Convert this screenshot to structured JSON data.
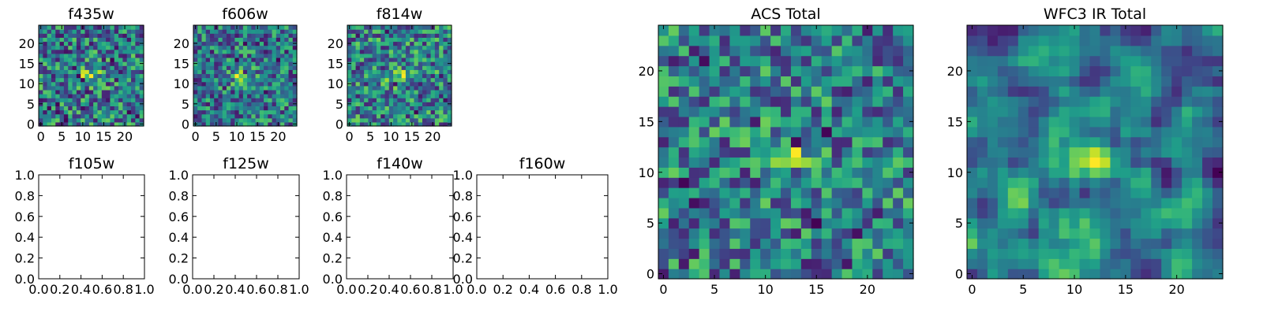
{
  "chart_data": [
    {
      "type": "heatmap",
      "title": "f435w",
      "xticks": [
        0,
        5,
        10,
        15,
        20
      ],
      "yticks": [
        0,
        5,
        10,
        15,
        20
      ],
      "xlim": [
        -0.5,
        24.5
      ],
      "ylim": [
        -0.5,
        24.5
      ],
      "grid_size": 25,
      "peak": {
        "x": 12,
        "y": 12
      },
      "colormap": "viridis"
    },
    {
      "type": "heatmap",
      "title": "f606w",
      "xticks": [
        0,
        5,
        10,
        15,
        20
      ],
      "yticks": [
        0,
        5,
        10,
        15,
        20
      ],
      "xlim": [
        -0.5,
        24.5
      ],
      "ylim": [
        -0.5,
        24.5
      ],
      "grid_size": 25,
      "peak": {
        "x": 11,
        "y": 12
      },
      "colormap": "viridis"
    },
    {
      "type": "heatmap",
      "title": "f814w",
      "xticks": [
        0,
        5,
        10,
        15,
        20
      ],
      "yticks": [
        0,
        5,
        10,
        15,
        20
      ],
      "xlim": [
        -0.5,
        24.5
      ],
      "ylim": [
        -0.5,
        24.5
      ],
      "grid_size": 25,
      "peak": {
        "x": 12,
        "y": 12
      },
      "colormap": "viridis"
    },
    {
      "type": "empty",
      "title": "f105w",
      "xticks": [
        "0.0",
        "0.2",
        "0.4",
        "0.6",
        "0.8",
        "1.0"
      ],
      "yticks": [
        "0.0",
        "0.2",
        "0.4",
        "0.6",
        "0.8",
        "1.0"
      ],
      "xlim": [
        0,
        1
      ],
      "ylim": [
        0,
        1
      ]
    },
    {
      "type": "empty",
      "title": "f125w",
      "xticks": [
        "0.0",
        "0.2",
        "0.4",
        "0.6",
        "0.8",
        "1.0"
      ],
      "yticks": [
        "0.0",
        "0.2",
        "0.4",
        "0.6",
        "0.8",
        "1.0"
      ],
      "xlim": [
        0,
        1
      ],
      "ylim": [
        0,
        1
      ]
    },
    {
      "type": "empty",
      "title": "f140w",
      "xticks": [
        "0.0",
        "0.2",
        "0.4",
        "0.6",
        "0.8",
        "1.0"
      ],
      "yticks": [
        "0.0",
        "0.2",
        "0.4",
        "0.6",
        "0.8",
        "1.0"
      ],
      "xlim": [
        0,
        1
      ],
      "ylim": [
        0,
        1
      ]
    },
    {
      "type": "empty",
      "title": "f160w",
      "xticks": [
        "0.0",
        "0.2",
        "0.4",
        "0.6",
        "0.8",
        "1.0"
      ],
      "yticks": [
        "0.0",
        "0.2",
        "0.4",
        "0.6",
        "0.8",
        "1.0"
      ],
      "xlim": [
        0,
        1
      ],
      "ylim": [
        0,
        1
      ]
    },
    {
      "type": "heatmap",
      "title": "ACS Total",
      "xticks": [
        0,
        5,
        10,
        15,
        20
      ],
      "yticks": [
        0,
        5,
        10,
        15,
        20
      ],
      "xlim": [
        -0.5,
        24.5
      ],
      "ylim": [
        -0.5,
        24.5
      ],
      "grid_size": 25,
      "peak": {
        "x": 12,
        "y": 12
      },
      "colormap": "viridis"
    },
    {
      "type": "heatmap",
      "title": "WFC3 IR Total",
      "xticks": [
        0,
        5,
        10,
        15,
        20
      ],
      "yticks": [
        0,
        5,
        10,
        15,
        20
      ],
      "xlim": [
        -0.5,
        24.5
      ],
      "ylim": [
        -0.5,
        24.5
      ],
      "grid_size": 25,
      "peak": {
        "x": 12,
        "y": 11
      },
      "colormap": "viridis"
    }
  ]
}
